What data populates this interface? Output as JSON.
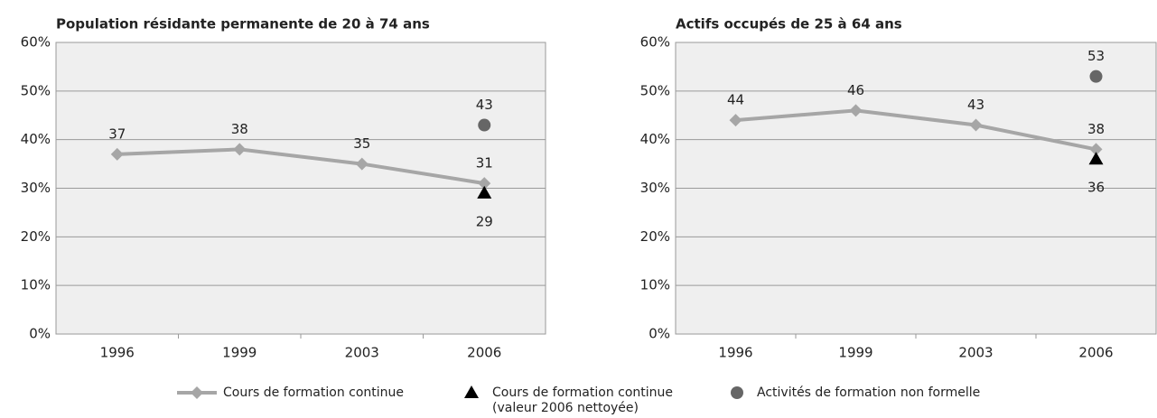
{
  "legend": [
    {
      "name": "Cours de formation continue",
      "color": "#a6a6a6",
      "marker": "diamond"
    },
    {
      "name": "Cours de formation continue (valeur 2006 nettoyée)",
      "color": "#000000",
      "marker": "triangle"
    },
    {
      "name": "Activités de formation non formelle",
      "color": "#666666",
      "marker": "circle"
    }
  ],
  "chart_data": [
    {
      "type": "line",
      "title": "Population résidante permanente de 20 à 74 ans",
      "categories": [
        "1996",
        "1999",
        "2003",
        "2006"
      ],
      "series": [
        {
          "values": [
            37,
            38,
            35,
            31
          ]
        },
        {
          "values": [
            null,
            null,
            null,
            29
          ]
        },
        {
          "values": [
            null,
            null,
            null,
            43
          ]
        }
      ],
      "ylim": [
        0,
        60
      ],
      "yticks": [
        {
          "value": 0,
          "label": "0%"
        },
        {
          "value": 10,
          "label": "10%"
        },
        {
          "value": 20,
          "label": "20%"
        },
        {
          "value": 30,
          "label": "30%"
        },
        {
          "value": 40,
          "label": "40%"
        },
        {
          "value": 50,
          "label": "50%"
        },
        {
          "value": 60,
          "label": "60%"
        }
      ],
      "grid": true
    },
    {
      "type": "line",
      "title": "Actifs occupés de 25 à 64 ans",
      "categories": [
        "1996",
        "1999",
        "2003",
        "2006"
      ],
      "series": [
        {
          "values": [
            44,
            46,
            43,
            38
          ]
        },
        {
          "values": [
            null,
            null,
            null,
            36
          ]
        },
        {
          "values": [
            null,
            null,
            null,
            53
          ]
        }
      ],
      "ylim": [
        0,
        60
      ],
      "yticks": [
        {
          "value": 0,
          "label": "0%"
        },
        {
          "value": 10,
          "label": "10%"
        },
        {
          "value": 20,
          "label": "20%"
        },
        {
          "value": 30,
          "label": "30%"
        },
        {
          "value": 40,
          "label": "40%"
        },
        {
          "value": 50,
          "label": "50%"
        },
        {
          "value": 60,
          "label": "60%"
        }
      ],
      "grid": true
    }
  ]
}
